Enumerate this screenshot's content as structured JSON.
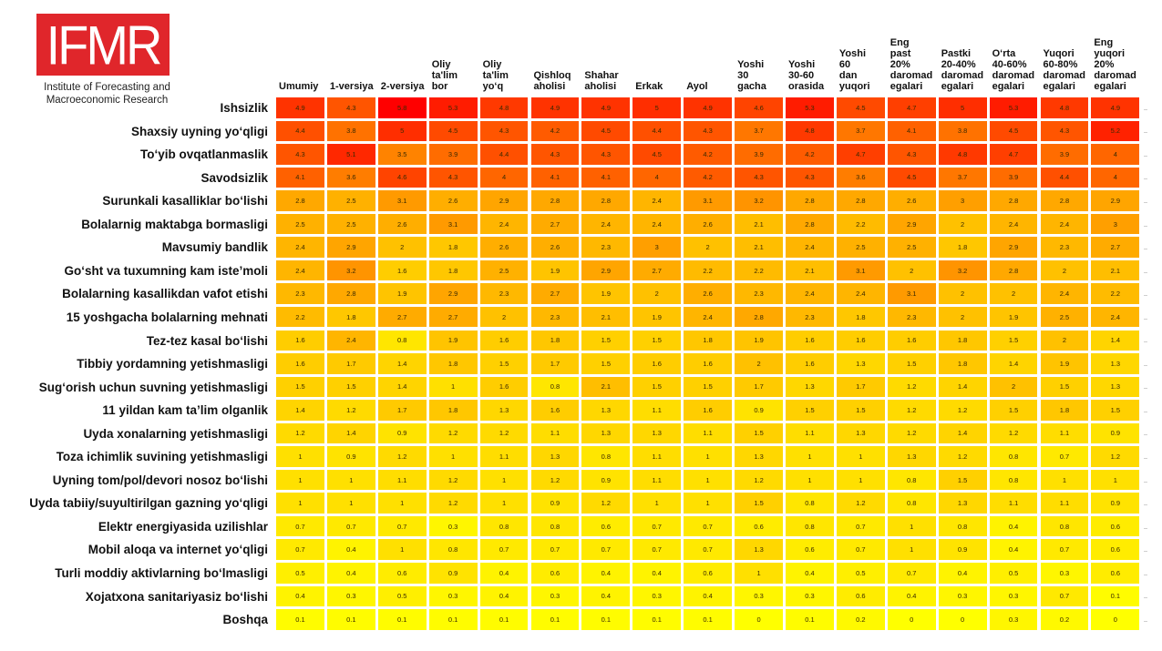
{
  "logo": {
    "text": "IFMR",
    "subtitle_line1": "Institute of Forecasting and",
    "subtitle_line2": "Macroeconomic Research",
    "brand_color": "#e0262b"
  },
  "chart_data": {
    "type": "heatmap",
    "title": "",
    "xlabel": "",
    "ylabel": "",
    "color_scale": {
      "low": "#ffff00",
      "mid": "#ffa500",
      "high": "#ff0000",
      "min": 0,
      "max": 5.8
    },
    "columns": [
      "Umumiy",
      "1-versiya",
      "2-versiya",
      "Oliy\nta'lim\nbor",
      "Oliy\nta'lim\nyo‘q",
      "Qishloq\naholisi",
      "Shahar\naholisi",
      "Erkak",
      "Ayol",
      "Yoshi\n30\ngacha",
      "Yoshi\n30-60\norasida",
      "Yoshi\n60\ndan\nyuqori",
      "Eng\npast\n20%\ndaromad\negalari",
      "Pastki\n20-40%\ndaromad\negalari",
      "O‘rta\n40-60%\ndaromad\negalari",
      "Yuqori\n60-80%\ndaromad\negalari",
      "Eng\nyuqori\n20%\ndaromad\negalari"
    ],
    "rows": [
      "Ishsizlik",
      "Shaxsiy uyning yo‘qligi",
      "To‘yib ovqatlanmaslik",
      "Savodsizlik",
      "Surunkali kasalliklar bo‘lishi",
      "Bolalarnig maktabga bormasligi",
      "Mavsumiy bandlik",
      "Go‘sht va tuxumning kam iste’moli",
      "Bolalarning kasallikdan vafot etishi",
      "15 yoshgacha bolalarning mehnati",
      "Tez-tez kasal bo‘lishi",
      "Tibbiy yordamning yetishmasligi",
      "Sug‘orish uchun suvning yetishmasligi",
      "11 yildan kam ta’lim olganlik",
      "Uyda xonalarning yetishmasligi",
      "Toza ichimlik suvining yetishmasligi",
      "Uyning tom/pol/devori nosoz bo‘lishi",
      "Uyda tabiiy/suyultirilgan gazning yo‘qligi",
      "Elektr energiyasida uzilishlar",
      "Mobil aloqa va internet yo‘qligi",
      "Turli moddiy aktivlarning bo‘lmasligi",
      "Xojatxona sanitariyasiz bo‘lishi",
      "Boshqa"
    ],
    "values": [
      [
        4.9,
        4.3,
        5.8,
        5.3,
        4.8,
        4.9,
        4.9,
        5,
        4.9,
        4.6,
        5.3,
        4.5,
        4.7,
        5,
        5.3,
        4.8,
        4.9
      ],
      [
        4.4,
        3.8,
        5,
        4.5,
        4.3,
        4.2,
        4.5,
        4.4,
        4.3,
        3.7,
        4.8,
        3.7,
        4.1,
        3.8,
        4.5,
        4.3,
        5.2
      ],
      [
        4.3,
        5.1,
        3.5,
        3.9,
        4.4,
        4.3,
        4.3,
        4.5,
        4.2,
        3.9,
        4.2,
        4.7,
        4.3,
        4.8,
        4.7,
        3.9,
        4
      ],
      [
        4.1,
        3.6,
        4.6,
        4.3,
        4,
        4.1,
        4.1,
        4,
        4.2,
        4.3,
        4.3,
        3.6,
        4.5,
        3.7,
        3.9,
        4.4,
        4
      ],
      [
        2.8,
        2.5,
        3.1,
        2.6,
        2.9,
        2.8,
        2.8,
        2.4,
        3.1,
        3.2,
        2.8,
        2.8,
        2.6,
        3,
        2.8,
        2.8,
        2.9
      ],
      [
        2.5,
        2.5,
        2.6,
        3.1,
        2.4,
        2.7,
        2.4,
        2.4,
        2.6,
        2.1,
        2.8,
        2.2,
        2.9,
        2,
        2.4,
        2.4,
        3
      ],
      [
        2.4,
        2.9,
        2,
        1.8,
        2.6,
        2.6,
        2.3,
        3,
        2,
        2.1,
        2.4,
        2.5,
        2.5,
        1.8,
        2.9,
        2.3,
        2.7
      ],
      [
        2.4,
        3.2,
        1.6,
        1.8,
        2.5,
        1.9,
        2.9,
        2.7,
        2.2,
        2.2,
        2.1,
        3.1,
        2,
        3.2,
        2.8,
        2,
        2.1
      ],
      [
        2.3,
        2.8,
        1.9,
        2.9,
        2.3,
        2.7,
        1.9,
        2,
        2.6,
        2.3,
        2.4,
        2.4,
        3.1,
        2,
        2,
        2.4,
        2.2
      ],
      [
        2.2,
        1.8,
        2.7,
        2.7,
        2,
        2.3,
        2.1,
        1.9,
        2.4,
        2.8,
        2.3,
        1.8,
        2.3,
        2,
        1.9,
        2.5,
        2.4
      ],
      [
        1.6,
        2.4,
        0.8,
        1.9,
        1.6,
        1.8,
        1.5,
        1.5,
        1.8,
        1.9,
        1.6,
        1.6,
        1.6,
        1.8,
        1.5,
        2,
        1.4
      ],
      [
        1.6,
        1.7,
        1.4,
        1.8,
        1.5,
        1.7,
        1.5,
        1.6,
        1.6,
        2,
        1.6,
        1.3,
        1.5,
        1.8,
        1.4,
        1.9,
        1.3
      ],
      [
        1.5,
        1.5,
        1.4,
        1,
        1.6,
        0.8,
        2.1,
        1.5,
        1.5,
        1.7,
        1.3,
        1.7,
        1.2,
        1.4,
        2,
        1.5,
        1.3
      ],
      [
        1.4,
        1.2,
        1.7,
        1.8,
        1.3,
        1.6,
        1.3,
        1.1,
        1.6,
        0.9,
        1.5,
        1.5,
        1.2,
        1.2,
        1.5,
        1.8,
        1.5
      ],
      [
        1.2,
        1.4,
        0.9,
        1.2,
        1.2,
        1.1,
        1.3,
        1.3,
        1.1,
        1.5,
        1.1,
        1.3,
        1.2,
        1.4,
        1.2,
        1.1,
        0.9
      ],
      [
        1,
        0.9,
        1.2,
        1,
        1.1,
        1.3,
        0.8,
        1.1,
        1,
        1.3,
        1,
        1,
        1.3,
        1.2,
        0.8,
        0.7,
        1.2
      ],
      [
        1,
        1,
        1.1,
        1.2,
        1,
        1.2,
        0.9,
        1.1,
        1,
        1.2,
        1,
        1,
        0.8,
        1.5,
        0.8,
        1,
        1
      ],
      [
        1,
        1,
        1,
        1.2,
        1,
        0.9,
        1.2,
        1,
        1,
        1.5,
        0.8,
        1.2,
        0.8,
        1.3,
        1.1,
        1.1,
        0.9
      ],
      [
        0.7,
        0.7,
        0.7,
        0.3,
        0.8,
        0.8,
        0.6,
        0.7,
        0.7,
        0.6,
        0.8,
        0.7,
        1,
        0.8,
        0.4,
        0.8,
        0.6
      ],
      [
        0.7,
        0.4,
        1,
        0.8,
        0.7,
        0.7,
        0.7,
        0.7,
        0.7,
        1.3,
        0.6,
        0.7,
        1,
        0.9,
        0.4,
        0.7,
        0.6
      ],
      [
        0.5,
        0.4,
        0.6,
        0.9,
        0.4,
        0.6,
        0.4,
        0.4,
        0.6,
        1,
        0.4,
        0.5,
        0.7,
        0.4,
        0.5,
        0.3,
        0.6
      ],
      [
        0.4,
        0.3,
        0.5,
        0.3,
        0.4,
        0.3,
        0.4,
        0.3,
        0.4,
        0.3,
        0.3,
        0.6,
        0.4,
        0.3,
        0.3,
        0.7,
        0.1
      ],
      [
        0.1,
        0.1,
        0.1,
        0.1,
        0.1,
        0.1,
        0.1,
        0.1,
        0.1,
        0,
        0.1,
        0.2,
        0,
        0,
        0.3,
        0.2,
        0
      ]
    ]
  }
}
